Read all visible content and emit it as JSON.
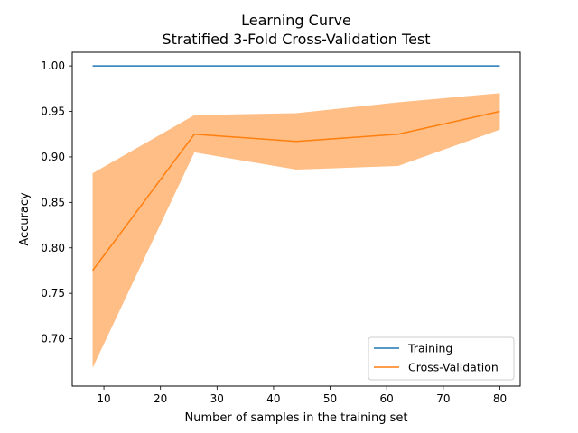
{
  "chart_data": {
    "type": "line",
    "title": "Learning Curve",
    "subtitle": "Stratified 3-Fold Cross-Validation Test",
    "xlabel": "Number of samples in the training set",
    "ylabel": "Accuracy",
    "xlim": [
      4.4,
      83.6
    ],
    "ylim": [
      0.648,
      1.015
    ],
    "x_ticks": [
      10,
      20,
      30,
      40,
      50,
      60,
      70,
      80
    ],
    "x_tick_labels": [
      "10",
      "20",
      "30",
      "40",
      "50",
      "60",
      "70",
      "80"
    ],
    "y_ticks": [
      0.7,
      0.75,
      0.8,
      0.85,
      0.9,
      0.95,
      1.0
    ],
    "y_tick_labels": [
      "0.70",
      "0.75",
      "0.80",
      "0.85",
      "0.90",
      "0.95",
      "1.00"
    ],
    "grid": false,
    "legend_position": "bottom-right",
    "x": [
      8,
      26,
      44,
      62,
      80
    ],
    "series": [
      {
        "name": "Training",
        "color": "#1f77b4",
        "values": [
          1.0,
          1.0,
          1.0,
          1.0,
          1.0
        ]
      },
      {
        "name": "Cross-Validation",
        "color": "#ff7f0e",
        "values": [
          0.775,
          0.925,
          0.917,
          0.925,
          0.95
        ],
        "band_lower": [
          0.668,
          0.905,
          0.886,
          0.89,
          0.93
        ],
        "band_upper": [
          0.882,
          0.946,
          0.948,
          0.96,
          0.97
        ],
        "band_color": "#ffbe86"
      }
    ]
  }
}
